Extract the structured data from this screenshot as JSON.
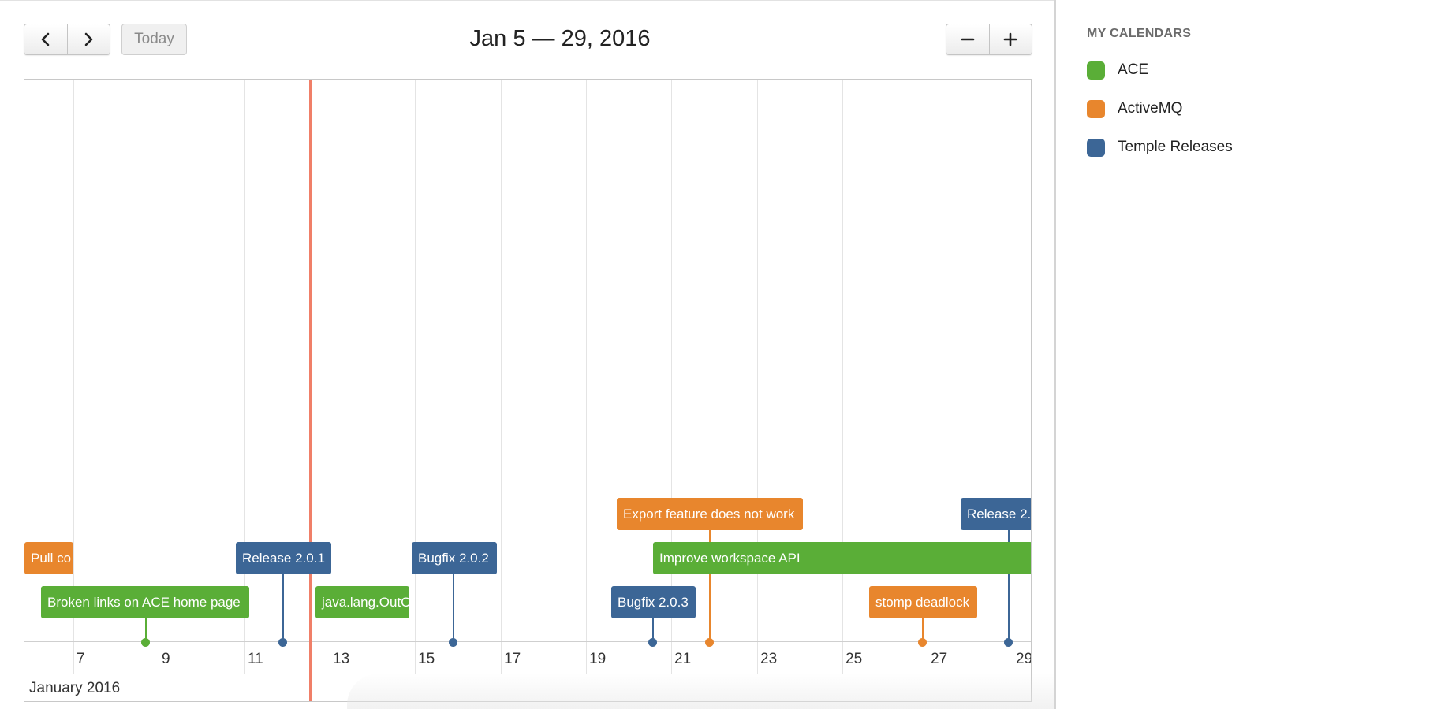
{
  "toolbar": {
    "prev_icon": "chevron-left-icon",
    "next_icon": "chevron-right-icon",
    "today_label": "Today",
    "range_title": "Jan 5 — 29, 2016",
    "zoom_out_label": "−",
    "zoom_in_label": "+"
  },
  "timeline": {
    "month_label": "January 2016",
    "ticks": [
      "7",
      "9",
      "11",
      "13",
      "15",
      "17",
      "19",
      "21",
      "23",
      "25",
      "27",
      "29"
    ],
    "events": [
      {
        "id": "e1",
        "label": "Pull co",
        "calendar": "ActiveMQ"
      },
      {
        "id": "e2",
        "label": "Broken links on ACE home page",
        "calendar": "ACE"
      },
      {
        "id": "e3",
        "label": "Release 2.0.1",
        "calendar": "Temple Releases"
      },
      {
        "id": "e4",
        "label": "java.lang.OutC",
        "calendar": "ACE"
      },
      {
        "id": "e5",
        "label": "Bugfix 2.0.2",
        "calendar": "Temple Releases"
      },
      {
        "id": "e6",
        "label": "Bugfix 2.0.3",
        "calendar": "Temple Releases"
      },
      {
        "id": "e7",
        "label": "Export feature does not work",
        "calendar": "ActiveMQ"
      },
      {
        "id": "e8",
        "label": "Improve workspace API",
        "calendar": "ACE"
      },
      {
        "id": "e9",
        "label": "stomp deadlock",
        "calendar": "ActiveMQ"
      },
      {
        "id": "e10",
        "label": "Release 2.",
        "calendar": "Temple Releases"
      }
    ]
  },
  "sidebar": {
    "heading": "MY CALENDARS",
    "calendars": [
      {
        "label": "ACE",
        "color": "#5aae37"
      },
      {
        "label": "ActiveMQ",
        "color": "#e8862d"
      },
      {
        "label": "Temple Releases",
        "color": "#3c6696"
      }
    ]
  },
  "colors": {
    "ace": "#5aae37",
    "activemq": "#e8862d",
    "temple_releases": "#3c6696",
    "now_marker": "#f07f68"
  }
}
